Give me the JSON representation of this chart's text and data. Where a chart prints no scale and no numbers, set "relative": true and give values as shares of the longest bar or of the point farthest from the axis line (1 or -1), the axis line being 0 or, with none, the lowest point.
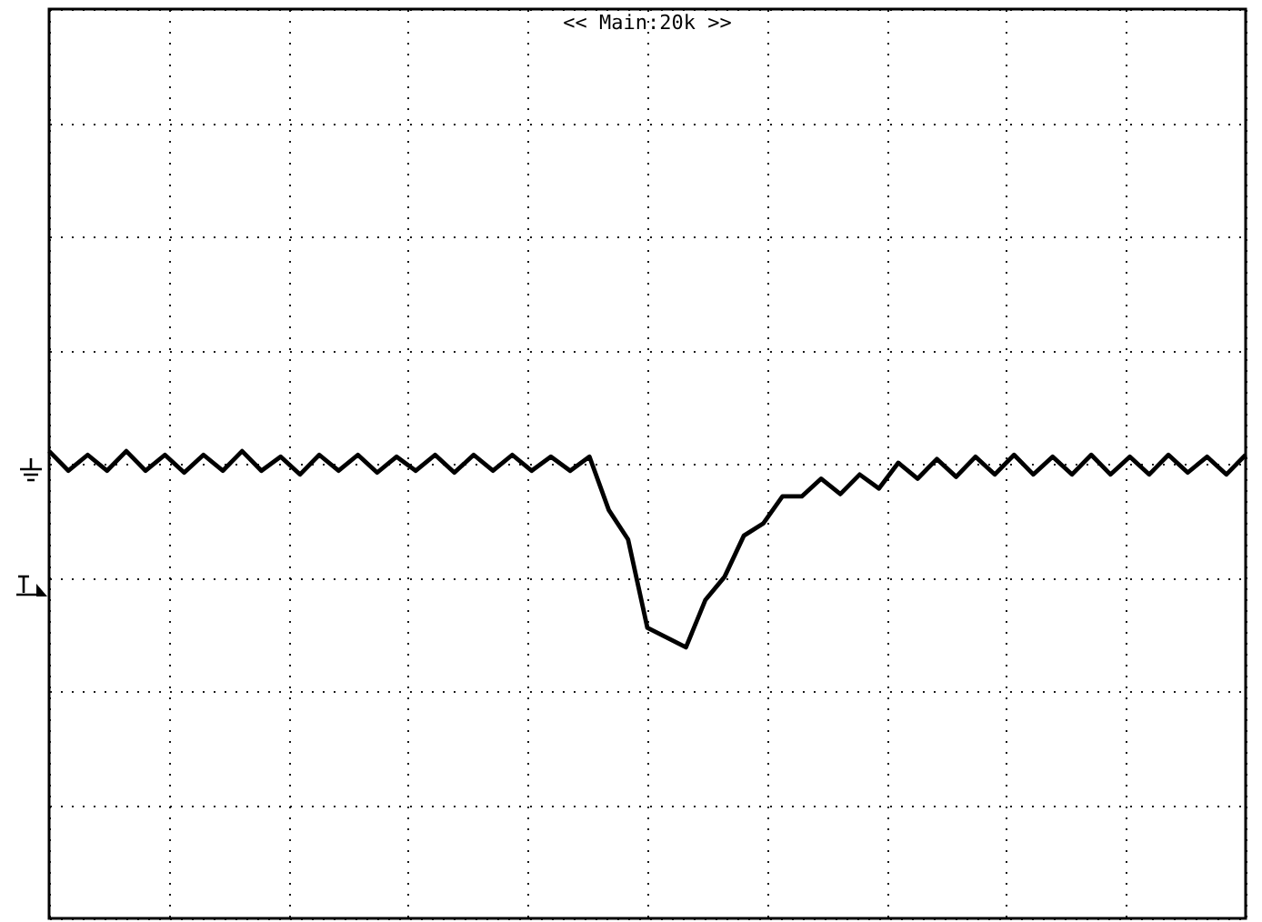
{
  "chart_data": {
    "type": "line",
    "title": "<< Main:20k >>",
    "relative": true,
    "grid": true,
    "color": "#000000",
    "categories": [
      null,
      null,
      null,
      null,
      null,
      null,
      null,
      null,
      null,
      null,
      null,
      null,
      null,
      null,
      null,
      null,
      null,
      null,
      null,
      null,
      null,
      null,
      null,
      null,
      null,
      null,
      null,
      null,
      null,
      null,
      null,
      null,
      null,
      null,
      null,
      null,
      null,
      null,
      null,
      null,
      null,
      null,
      null,
      null,
      null,
      null,
      null,
      null,
      null,
      null,
      null,
      null,
      null,
      null,
      null,
      null,
      null,
      null,
      null,
      null,
      null,
      null,
      null
    ],
    "values": [
      1,
      0.958,
      0.992,
      0.958,
      1,
      0.958,
      0.992,
      0.954,
      0.992,
      0.958,
      1,
      0.958,
      0.988,
      0.95,
      0.992,
      0.958,
      0.992,
      0.954,
      0.988,
      0.958,
      0.992,
      0.954,
      0.992,
      0.958,
      0.992,
      0.958,
      0.988,
      0.958,
      0.988,
      0.874,
      0.811,
      0.622,
      0.601,
      0.58,
      0.681,
      0.731,
      0.819,
      0.845,
      0.903,
      0.903,
      0.941,
      0.908,
      0.95,
      0.92,
      0.975,
      0.941,
      0.983,
      0.945,
      0.988,
      0.95,
      0.992,
      0.95,
      0.988,
      0.95,
      0.992,
      0.95,
      0.988,
      0.95,
      0.992,
      0.954,
      0.988,
      0.95,
      0.992
    ]
  }
}
